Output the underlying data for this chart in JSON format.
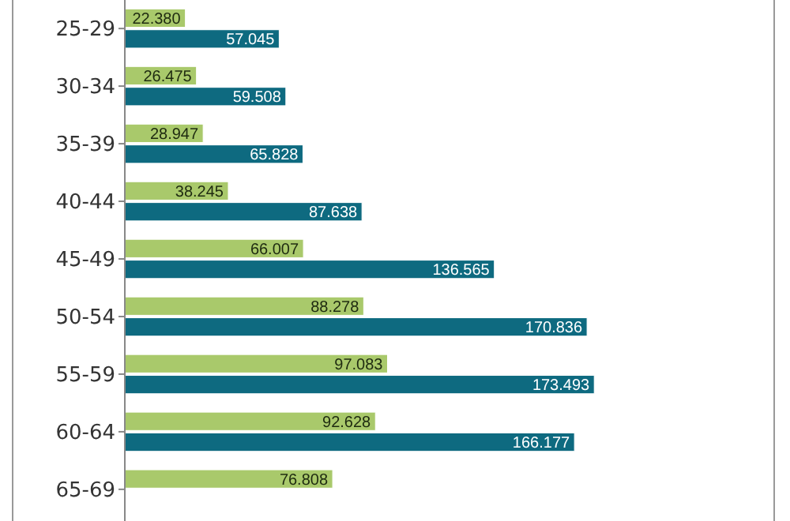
{
  "chart_data": {
    "type": "bar",
    "orientation": "horizontal",
    "categories": [
      "25-29",
      "30-34",
      "35-39",
      "40-44",
      "45-49",
      "50-54",
      "55-59",
      "60-64",
      "65-69"
    ],
    "series": [
      {
        "color": "#a9c96b",
        "values": [
          22.38,
          26.475,
          28.947,
          38.245,
          66.007,
          88.278,
          97.083,
          92.628,
          76.808
        ],
        "value_labels": [
          "22.380",
          "26.475",
          "28.947",
          "38.245",
          "66.007",
          "88.278",
          "97.083",
          "92.628",
          "76.808"
        ]
      },
      {
        "color": "#0e6a80",
        "values": [
          57.045,
          59.508,
          65.828,
          87.638,
          136.565,
          170.836,
          173.493,
          166.177,
          null
        ],
        "value_labels": [
          "57.045",
          "59.508",
          "65.828",
          "87.638",
          "136.565",
          "170.836",
          "173.493",
          "166.177",
          null
        ]
      }
    ],
    "xlim": [
      0,
      240
    ],
    "tick_labels": "y"
  }
}
